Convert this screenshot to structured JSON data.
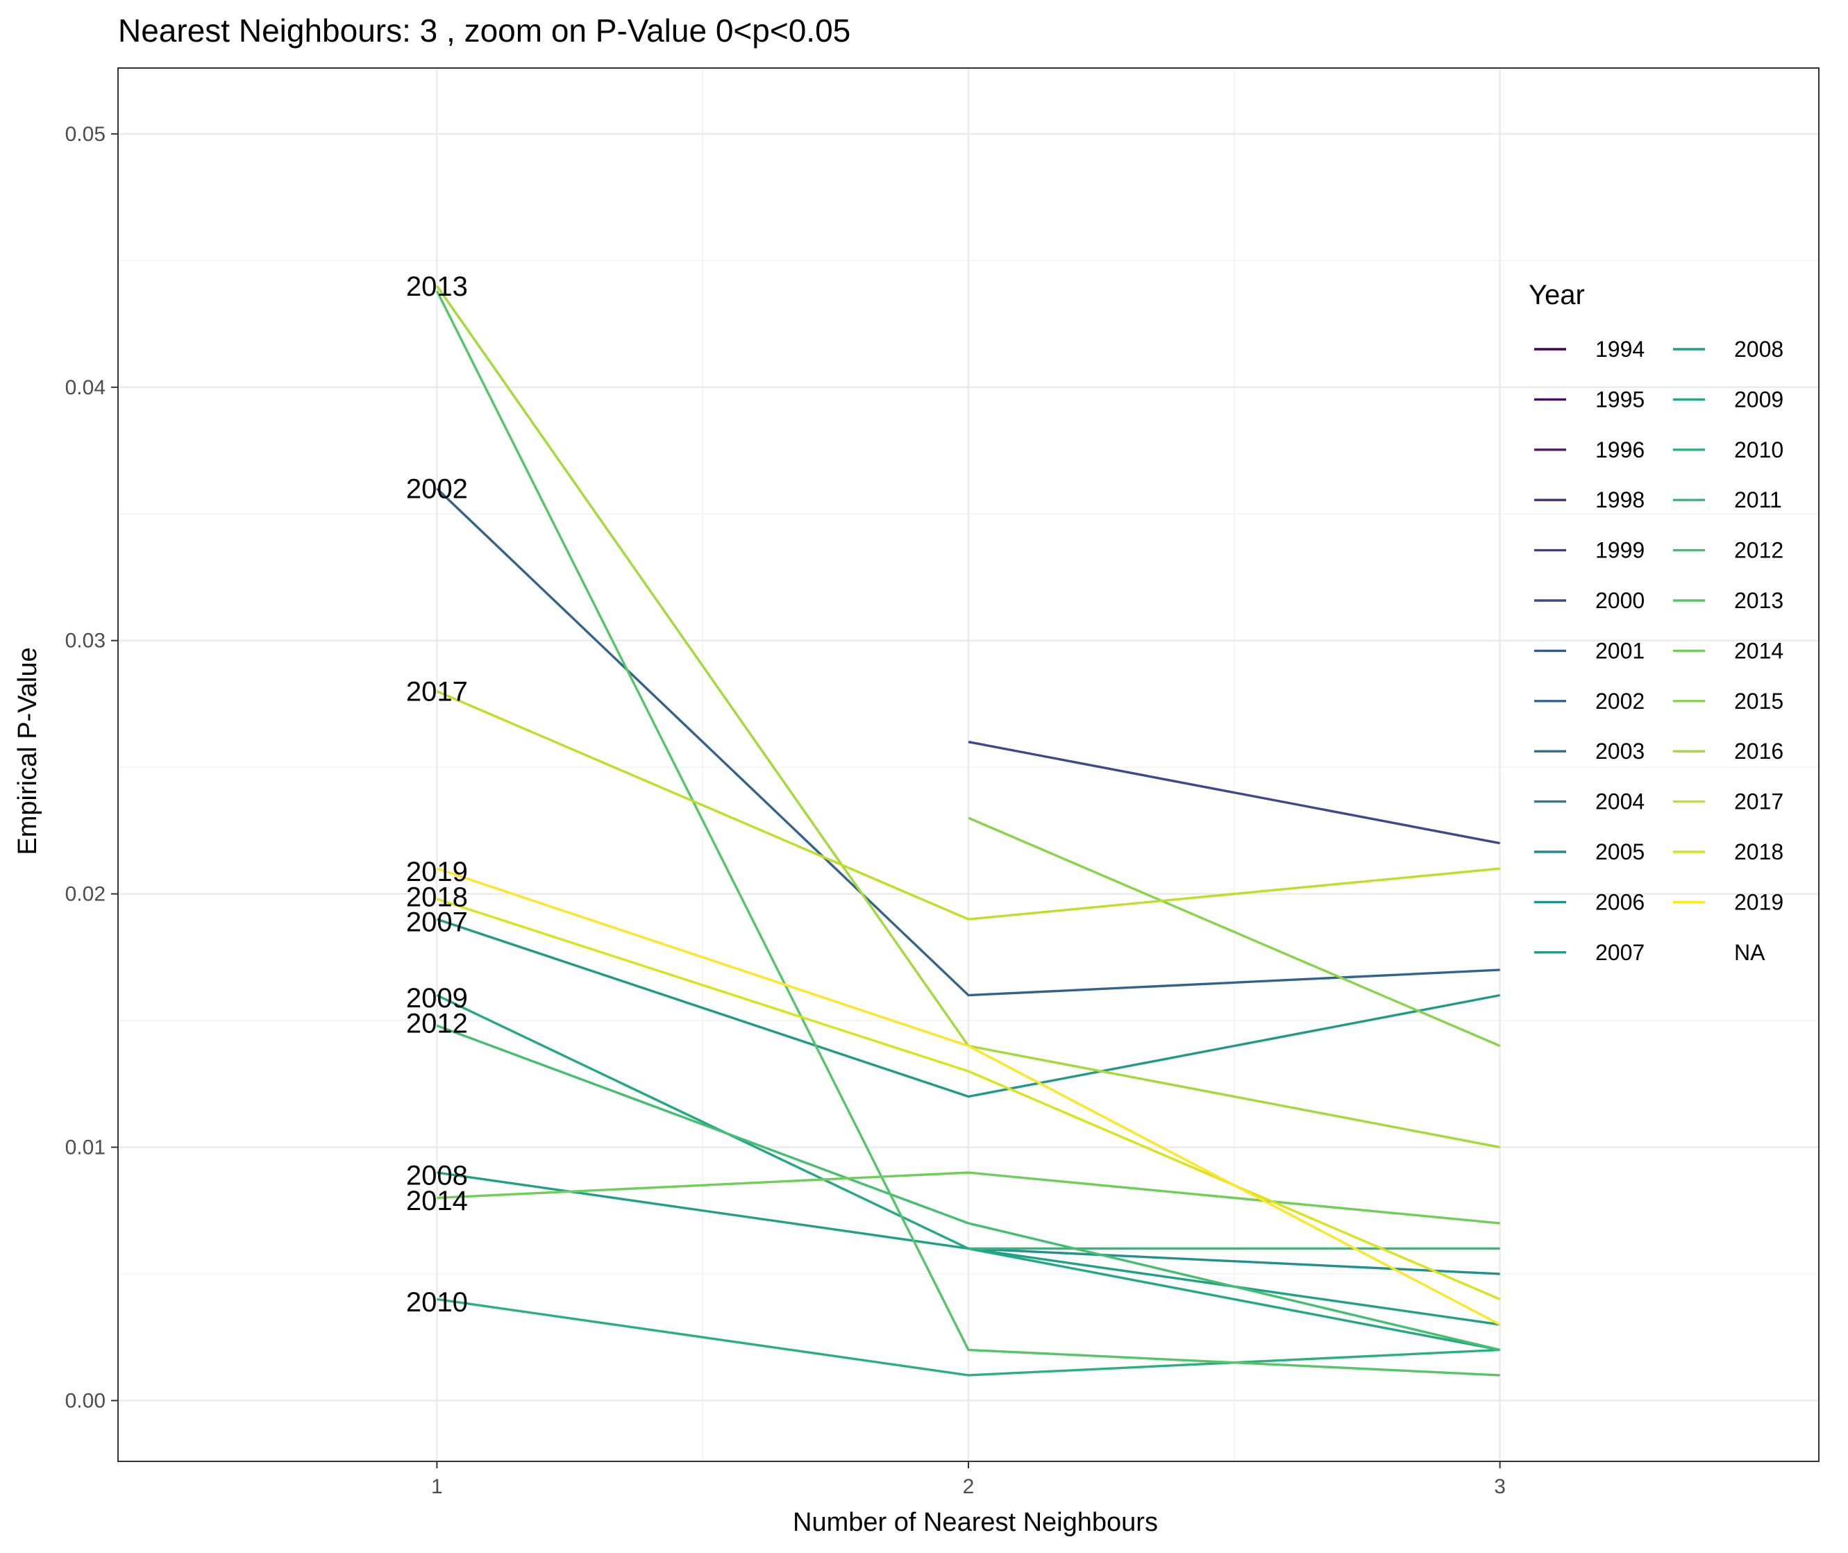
{
  "chart_data": {
    "type": "line",
    "title": "Nearest Neighbours: 3 , zoom on P-Value 0<p<0.05",
    "xlabel": "Number of Nearest Neighbours",
    "ylabel": "Empirical P-Value",
    "x": [
      1,
      2,
      3
    ],
    "x_ticks": [
      "1",
      "2",
      "3"
    ],
    "y_ticks": [
      "0.00",
      "0.01",
      "0.02",
      "0.03",
      "0.04",
      "0.05"
    ],
    "xlim": [
      0.4,
      3.6
    ],
    "ylim": [
      -0.0024,
      0.0526
    ],
    "grid": true,
    "legend": {
      "title": "Year",
      "placement": "right",
      "columns": [
        [
          {
            "label": "1994",
            "color": "#440154"
          },
          {
            "label": "1995",
            "color": "#470d60"
          },
          {
            "label": "1996",
            "color": "#48186a"
          },
          {
            "label": "1998",
            "color": "#472a7a"
          },
          {
            "label": "1999",
            "color": "#433d84"
          },
          {
            "label": "2000",
            "color": "#3e4989"
          },
          {
            "label": "2001",
            "color": "#38588c"
          },
          {
            "label": "2002",
            "color": "#33638d"
          },
          {
            "label": "2003",
            "color": "#2d708e"
          },
          {
            "label": "2004",
            "color": "#287c8e"
          },
          {
            "label": "2005",
            "color": "#24868e"
          },
          {
            "label": "2006",
            "color": "#21918c"
          },
          {
            "label": "2007",
            "color": "#1f9a8a"
          }
        ],
        [
          {
            "label": "2008",
            "color": "#1fa187"
          },
          {
            "label": "2009",
            "color": "#22a884"
          },
          {
            "label": "2010",
            "color": "#2ab07f"
          },
          {
            "label": "2011",
            "color": "#35b779"
          },
          {
            "label": "2012",
            "color": "#44bf70"
          },
          {
            "label": "2013",
            "color": "#54c568"
          },
          {
            "label": "2014",
            "color": "#6ece58"
          },
          {
            "label": "2015",
            "color": "#86d549"
          },
          {
            "label": "2016",
            "color": "#a2da37"
          },
          {
            "label": "2017",
            "color": "#bddf26"
          },
          {
            "label": "2018",
            "color": "#dae319"
          },
          {
            "label": "2019",
            "color": "#fde725"
          },
          {
            "label": "NA",
            "color": ""
          }
        ]
      ]
    },
    "series": [
      {
        "name": "2000",
        "color": "#3e4989",
        "values": [
          null,
          0.026,
          0.022
        ]
      },
      {
        "name": "2002",
        "color": "#33638d",
        "values": [
          0.036,
          0.016,
          0.017
        ]
      },
      {
        "name": "2006",
        "color": "#21918c",
        "values": [
          null,
          0.006,
          0.005
        ]
      },
      {
        "name": "2007",
        "color": "#1f9a8a",
        "values": [
          0.019,
          0.012,
          0.016
        ]
      },
      {
        "name": "2008",
        "color": "#1fa187",
        "values": [
          0.009,
          0.006,
          0.003
        ]
      },
      {
        "name": "2009",
        "color": "#22a884",
        "values": [
          0.016,
          0.006,
          0.002
        ]
      },
      {
        "name": "2010",
        "color": "#2ab07f",
        "values": [
          0.004,
          0.001,
          0.002
        ]
      },
      {
        "name": "2011",
        "color": "#35b779",
        "values": [
          null,
          0.006,
          0.006
        ]
      },
      {
        "name": "2012",
        "color": "#44bf70",
        "values": [
          0.0148,
          0.007,
          0.002
        ]
      },
      {
        "name": "2013",
        "color": "#54c568",
        "values": [
          0.0438,
          0.002,
          0.001
        ]
      },
      {
        "name": "2014",
        "color": "#6ece58",
        "values": [
          0.008,
          0.009,
          0.007
        ]
      },
      {
        "name": "2015",
        "color": "#86d549",
        "values": [
          null,
          0.023,
          0.014
        ]
      },
      {
        "name": "2016",
        "color": "#a2da37",
        "values": [
          0.044,
          0.014,
          0.01
        ]
      },
      {
        "name": "2017",
        "color": "#bddf26",
        "values": [
          0.028,
          0.019,
          0.021
        ]
      },
      {
        "name": "2018",
        "color": "#dae319",
        "values": [
          0.0198,
          0.013,
          0.004
        ]
      },
      {
        "name": "2019",
        "color": "#fde725",
        "values": [
          0.021,
          0.014,
          0.003
        ]
      }
    ],
    "point_labels": [
      {
        "text": "2013",
        "x": 1,
        "y": 0.044
      },
      {
        "text": "2002",
        "x": 1,
        "y": 0.036
      },
      {
        "text": "2017",
        "x": 1,
        "y": 0.028
      },
      {
        "text": "2019",
        "x": 1,
        "y": 0.0209
      },
      {
        "text": "2018",
        "x": 1,
        "y": 0.0199
      },
      {
        "text": "2007",
        "x": 1,
        "y": 0.0189
      },
      {
        "text": "2009",
        "x": 1,
        "y": 0.0159
      },
      {
        "text": "2012",
        "x": 1,
        "y": 0.0149
      },
      {
        "text": "2008",
        "x": 1,
        "y": 0.0089
      },
      {
        "text": "2014",
        "x": 1,
        "y": 0.0079
      },
      {
        "text": "2010",
        "x": 1,
        "y": 0.0039
      }
    ]
  }
}
